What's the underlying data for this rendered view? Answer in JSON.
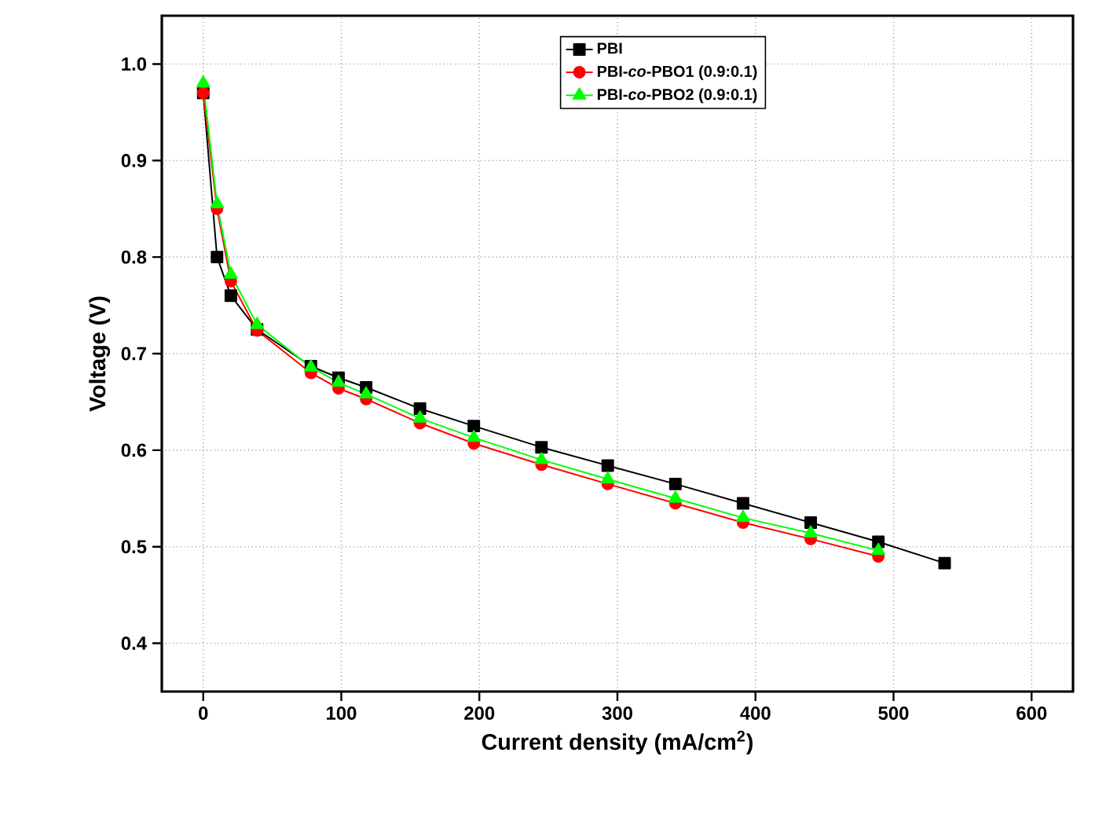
{
  "chart_data": {
    "type": "line",
    "xlabel": "Current density (mA/cm$^{2}$)",
    "ylabel": "Voltage (V)",
    "xlim": [
      -30,
      630
    ],
    "ylim": [
      0.35,
      1.05
    ],
    "xticks": [
      0,
      100,
      200,
      300,
      400,
      500,
      600
    ],
    "yticks": [
      0.4,
      0.5,
      0.6,
      0.7,
      0.8,
      0.9,
      {
        "value": 1.0,
        "label": "1.0"
      }
    ],
    "grid": true,
    "legend": "top",
    "line_style": "solid",
    "series": [
      {
        "name": "PBI",
        "color": "#000000",
        "marker": "square",
        "x": [
          0,
          10,
          20,
          39,
          78,
          98,
          118,
          157,
          196,
          245,
          293,
          342,
          391,
          440,
          489,
          537
        ],
        "values": [
          0.97,
          0.8,
          0.76,
          0.725,
          0.687,
          0.675,
          0.665,
          0.643,
          0.625,
          0.603,
          0.584,
          0.565,
          0.545,
          0.525,
          0.505,
          0.483
        ]
      },
      {
        "name": "PBI-*co*-PBO1 (0.9:0.1)",
        "color": "#ff0000",
        "marker": "circle",
        "x": [
          0,
          10,
          20,
          39,
          78,
          98,
          118,
          157,
          196,
          245,
          293,
          342,
          391,
          440,
          489
        ],
        "values": [
          0.97,
          0.85,
          0.775,
          0.724,
          0.68,
          0.664,
          0.653,
          0.628,
          0.607,
          0.585,
          0.565,
          0.545,
          0.525,
          0.508,
          0.49
        ]
      },
      {
        "name": "PBI-*co*-PBO2 (0.9:0.1)",
        "color": "#00ff00",
        "marker": "triangle",
        "x": [
          0,
          10,
          20,
          39,
          78,
          98,
          118,
          157,
          196,
          245,
          293,
          342,
          391,
          440,
          489
        ],
        "values": [
          0.98,
          0.855,
          0.782,
          0.73,
          0.686,
          0.67,
          0.658,
          0.633,
          0.613,
          0.59,
          0.57,
          0.55,
          0.53,
          0.514,
          0.496
        ]
      }
    ]
  }
}
